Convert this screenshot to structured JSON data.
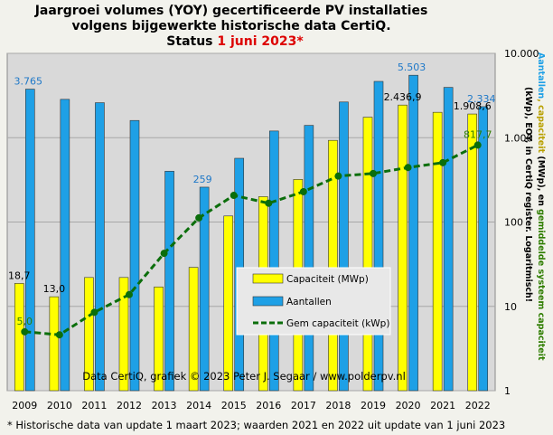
{
  "chart_data": {
    "type": "bar",
    "title_line1": "Jaargroei volumes (YOY) gecertificeerde  PV installaties",
    "title_line2": "volgens bijgewerkte historische data CertiQ.",
    "title_status": "Status",
    "title_date": "1 juni 2023*",
    "categories": [
      "2009",
      "2010",
      "2011",
      "2012",
      "2013",
      "2014",
      "2015",
      "2016",
      "2017",
      "2018",
      "2019",
      "2020",
      "2021",
      "2022"
    ],
    "y_scale": "log",
    "ylim": [
      1,
      10000
    ],
    "ytick_labels": [
      "1",
      "10",
      "100",
      "1.000",
      "10.000"
    ],
    "ytick_values": [
      1,
      10,
      100,
      1000,
      10000
    ],
    "grid": true,
    "series": [
      {
        "name": "Capaciteit (MWp)",
        "kind": "bar",
        "color": "#ffff00",
        "values": [
          18.7,
          13.0,
          22,
          22,
          17,
          29,
          118,
          200,
          320,
          930,
          1750,
          2436.9,
          2000,
          1908.6
        ]
      },
      {
        "name": "Aantallen",
        "kind": "bar",
        "color": "#1ea0e6",
        "values": [
          3765,
          2850,
          2600,
          1600,
          400,
          259,
          570,
          1200,
          1400,
          2650,
          4650,
          5503,
          3950,
          2334
        ]
      },
      {
        "name": "Gem capaciteit (kWp)",
        "kind": "line",
        "color": "#0b6e0b",
        "values": [
          5.0,
          4.6,
          8.5,
          13.8,
          42.5,
          112,
          207,
          167,
          229,
          351,
          376,
          443,
          506,
          817.7
        ]
      }
    ],
    "data_labels": {
      "capacity": [
        {
          "index": 0,
          "text": "18,7"
        },
        {
          "index": 1,
          "text": "13,0"
        },
        {
          "index": 11,
          "text": "2.436,9"
        },
        {
          "index": 13,
          "text": "1.908,6"
        }
      ],
      "count": [
        {
          "index": 0,
          "text": "3.765"
        },
        {
          "index": 5,
          "text": "259"
        },
        {
          "index": 11,
          "text": "5.503"
        },
        {
          "index": 13,
          "text": "2.334"
        }
      ],
      "avg": [
        {
          "index": 0,
          "text": "5,0"
        },
        {
          "index": 13,
          "text": "817,7"
        }
      ]
    },
    "legend_position": "center-right",
    "ylabel_part1": "Aantallen",
    "ylabel_part2": ", capaciteit",
    "ylabel_line2": "(kWp), EOY, in CertiQ register. Logaritmisch!",
    "ylabel_line1_tail": "(MWp), en",
    "ylabel_line1_green": "gemiddelde systeem capaciteit",
    "credit": "Data CertiQ, grafiek  ©  2023  Peter J. Segaar  /  www.polderpv.nl",
    "footnote": "* Historische data van update 1 maart 2023; waarden 2021 en 2022 uit update van 1 juni 2023",
    "colors": {
      "background": "#f2f2ec",
      "plot_area": "#d9d9d9",
      "title_date": "#dd0000",
      "count_labels": "#1e78c8",
      "avg_labels": "#2e7d00"
    }
  }
}
